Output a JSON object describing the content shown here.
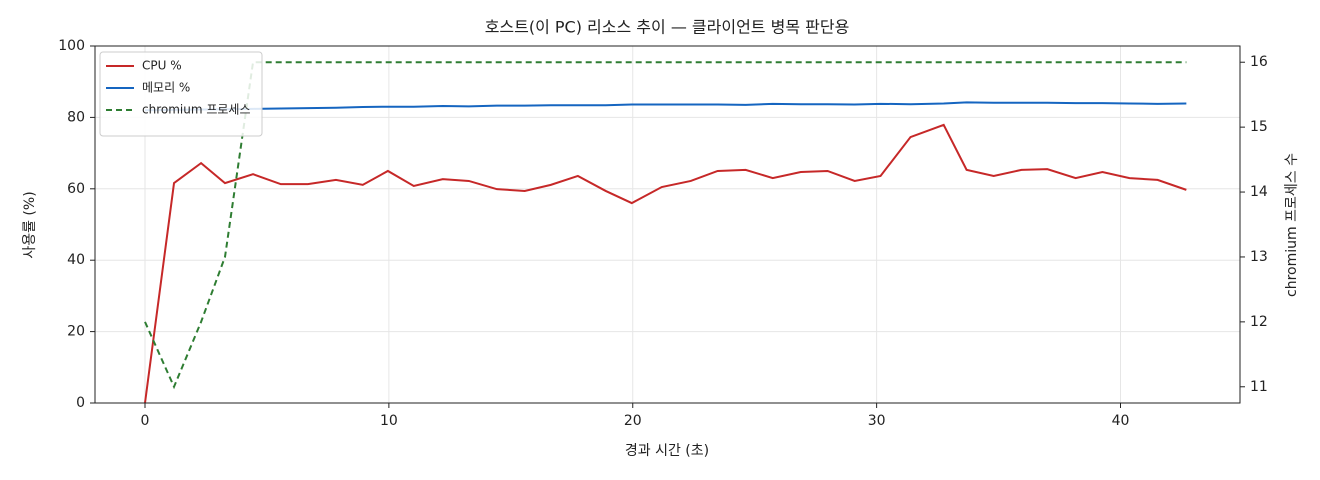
{
  "chart_data": {
    "type": "line",
    "title": "호스트(이 PC) 리소스 추이 — 클라이언트 병목 판단용",
    "x_label": "경과 시간 (초)",
    "y_label": "사용률 (%)",
    "y2_label": "chromium 프로세스 수",
    "x": [
      0,
      1.19,
      2.3,
      3.28,
      4.43,
      5.57,
      6.68,
      7.83,
      8.93,
      9.96,
      11.02,
      12.21,
      13.28,
      14.43,
      15.57,
      16.64,
      17.75,
      18.89,
      19.96,
      21.19,
      22.38,
      23.48,
      24.63,
      25.74,
      26.89,
      27.99,
      29.1,
      30.16,
      31.39,
      32.75,
      33.69,
      34.8,
      35.94,
      37.0,
      38.16,
      39.26,
      40.37,
      41.52,
      42.7
    ],
    "series": [
      {
        "name": "CPU %",
        "color": "#c62828",
        "dash": false,
        "values": [
          0,
          61.6,
          67.2,
          61.6,
          64.1,
          61.3,
          61.3,
          62.5,
          61.1,
          65,
          60.8,
          62.7,
          62.2,
          59.9,
          59.4,
          61.1,
          63.6,
          59.4,
          56,
          60.5,
          62.2,
          65,
          65.3,
          63,
          64.7,
          65,
          62.2,
          63.6,
          74.5,
          77.9,
          65.3,
          63.6,
          65.3,
          65.5,
          63,
          64.7,
          63,
          62.5,
          59.7
        ]
      },
      {
        "name": "메모리 %",
        "color": "#1565c0",
        "dash": false,
        "values": [
          82.0,
          82.1,
          82.2,
          82.3,
          82.4,
          82.5,
          82.6,
          82.7,
          82.9,
          83.0,
          83.0,
          83.2,
          83.1,
          83.3,
          83.3,
          83.4,
          83.4,
          83.4,
          83.6,
          83.6,
          83.6,
          83.6,
          83.5,
          83.8,
          83.7,
          83.7,
          83.6,
          83.8,
          83.7,
          83.9,
          84.2,
          84.1,
          84.1,
          84.1,
          84.0,
          84.0,
          83.9,
          83.8,
          83.9
        ]
      },
      {
        "name": "chromium 프로세스",
        "color": "#2e7d32",
        "dash": true,
        "axis": "y2",
        "values": [
          12,
          11,
          12,
          13,
          16,
          16,
          16,
          16,
          16,
          16,
          16,
          16,
          16,
          16,
          16,
          16,
          16,
          16,
          16,
          16,
          16,
          16,
          16,
          16,
          16,
          16,
          16,
          16,
          16,
          16,
          16,
          16,
          16,
          16,
          16,
          16,
          16,
          16,
          16
        ]
      }
    ],
    "xlim": [
      -2.05,
      44.9
    ],
    "xticks": [
      0,
      10,
      20,
      30,
      40
    ],
    "ylim": [
      0,
      100
    ],
    "yticks": [
      0,
      20,
      40,
      60,
      80,
      100
    ],
    "y2lim": [
      10.75,
      16.25
    ],
    "y2ticks": [
      11,
      12,
      13,
      14,
      15,
      16
    ],
    "grid": true,
    "legend": "upper-left"
  }
}
